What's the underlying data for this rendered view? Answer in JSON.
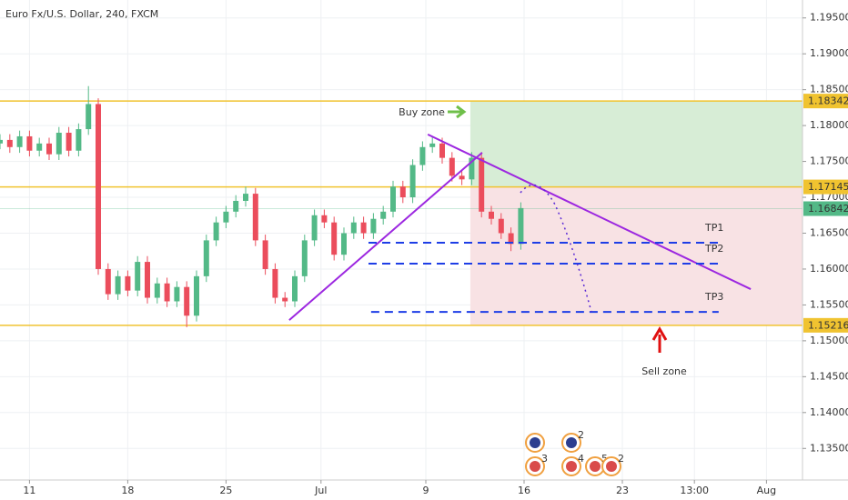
{
  "chart_data": {
    "type": "candlestick",
    "title": "Euro Fx/U.S. Dollar, 240, FXCM",
    "x": [
      0,
      3,
      6,
      9,
      12,
      15,
      18,
      21,
      24,
      27,
      30,
      33,
      36,
      39,
      42,
      45,
      48,
      51,
      54,
      57,
      60,
      63,
      66,
      69,
      72,
      75,
      78,
      81,
      84,
      87,
      90,
      93,
      96,
      99,
      102,
      105,
      108,
      111,
      114,
      117,
      120,
      123,
      126,
      129,
      132,
      135,
      138,
      141,
      144,
      147,
      150,
      153,
      156,
      159
    ],
    "open": [
      1.1775,
      1.178,
      1.177,
      1.1785,
      1.1765,
      1.1775,
      1.176,
      1.179,
      1.1765,
      1.1795,
      1.183,
      1.16,
      1.1565,
      1.159,
      1.157,
      1.161,
      1.156,
      1.158,
      1.1555,
      1.1575,
      1.1535,
      1.159,
      1.164,
      1.1665,
      1.168,
      1.1695,
      1.1705,
      1.164,
      1.16,
      1.156,
      1.1555,
      1.159,
      1.164,
      1.1675,
      1.1665,
      1.162,
      1.165,
      1.1665,
      1.165,
      1.167,
      1.168,
      1.1715,
      1.17,
      1.1745,
      1.177,
      1.1775,
      1.1755,
      1.173,
      1.1725,
      1.1755,
      1.168,
      1.167,
      1.165,
      1.1635
    ],
    "high": [
      1.1788,
      1.1788,
      1.1793,
      1.1793,
      1.1783,
      1.1783,
      1.1798,
      1.1798,
      1.1803,
      1.1855,
      1.1838,
      1.1608,
      1.1598,
      1.1598,
      1.1618,
      1.1618,
      1.1588,
      1.1588,
      1.1583,
      1.1583,
      1.1598,
      1.1648,
      1.1673,
      1.1688,
      1.1703,
      1.1715,
      1.1713,
      1.1648,
      1.1608,
      1.1568,
      1.1598,
      1.1648,
      1.1683,
      1.1683,
      1.1673,
      1.1658,
      1.1673,
      1.1673,
      1.1678,
      1.1688,
      1.1723,
      1.1723,
      1.1753,
      1.1778,
      1.1785,
      1.1783,
      1.1763,
      1.1738,
      1.1763,
      1.1763,
      1.1688,
      1.1678,
      1.1658,
      1.1693
    ],
    "low": [
      1.1767,
      1.1762,
      1.1762,
      1.1757,
      1.1757,
      1.1752,
      1.1752,
      1.1757,
      1.1757,
      1.1787,
      1.1592,
      1.1557,
      1.1557,
      1.1562,
      1.1562,
      1.1552,
      1.1552,
      1.1547,
      1.1547,
      1.1519,
      1.1527,
      1.1582,
      1.1632,
      1.1657,
      1.1672,
      1.1687,
      1.1632,
      1.1592,
      1.1552,
      1.1547,
      1.1547,
      1.1582,
      1.1632,
      1.1657,
      1.1612,
      1.1612,
      1.1642,
      1.1642,
      1.1642,
      1.1662,
      1.1672,
      1.1692,
      1.1692,
      1.1737,
      1.1762,
      1.1747,
      1.1722,
      1.1717,
      1.1717,
      1.1672,
      1.1662,
      1.1642,
      1.1625,
      1.1627
    ],
    "close": [
      1.178,
      1.177,
      1.1785,
      1.1765,
      1.1775,
      1.176,
      1.179,
      1.1765,
      1.1795,
      1.183,
      1.16,
      1.1565,
      1.159,
      1.157,
      1.161,
      1.156,
      1.158,
      1.1555,
      1.1575,
      1.1535,
      1.159,
      1.164,
      1.1665,
      1.168,
      1.1695,
      1.1705,
      1.164,
      1.16,
      1.156,
      1.1555,
      1.159,
      1.164,
      1.1675,
      1.1665,
      1.162,
      1.165,
      1.1665,
      1.165,
      1.167,
      1.168,
      1.1715,
      1.17,
      1.1745,
      1.177,
      1.1775,
      1.1755,
      1.173,
      1.1725,
      1.1755,
      1.168,
      1.167,
      1.165,
      1.1635,
      1.1685
    ],
    "up_color": "#53b987",
    "down_color": "#eb4d5c",
    "xlim": [
      0,
      245
    ],
    "xticks": [
      {
        "value": 9,
        "label": "11"
      },
      {
        "value": 39,
        "label": "18"
      },
      {
        "value": 69,
        "label": "25"
      },
      {
        "value": 98,
        "label": "Jul"
      },
      {
        "value": 130,
        "label": "9"
      },
      {
        "value": 160,
        "label": "16"
      },
      {
        "value": 190,
        "label": "23"
      },
      {
        "value": 212,
        "label": "13:00"
      },
      {
        "value": 234,
        "label": "Aug"
      }
    ],
    "ylim": [
      1.1306,
      1.1975
    ],
    "yticks": [
      {
        "value": 1.135,
        "label": "1.13500"
      },
      {
        "value": 1.14,
        "label": "1.14000"
      },
      {
        "value": 1.145,
        "label": "1.14500"
      },
      {
        "value": 1.15,
        "label": "1.15000"
      },
      {
        "value": 1.155,
        "label": "1.15500"
      },
      {
        "value": 1.16,
        "label": "1.16000"
      },
      {
        "value": 1.165,
        "label": "1.16500"
      },
      {
        "value": 1.17,
        "label": "1.17000"
      },
      {
        "value": 1.175,
        "label": "1.17500"
      },
      {
        "value": 1.18,
        "label": "1.18000"
      },
      {
        "value": 1.185,
        "label": "1.18500"
      },
      {
        "value": 1.19,
        "label": "1.19000"
      },
      {
        "value": 1.195,
        "label": "1.19500"
      }
    ],
    "grid": true,
    "levels": [
      {
        "value": 1.18342,
        "label": "1.18342",
        "color": "#f0c330"
      },
      {
        "value": 1.17145,
        "label": "1.17145",
        "color": "#f0c330"
      },
      {
        "value": 1.16842,
        "label": "1.16842",
        "color": "#53b987"
      },
      {
        "value": 1.15216,
        "label": "1.15216",
        "color": "#f0c330"
      }
    ],
    "zones": [
      {
        "name": "Buy zone",
        "color": "#d7edd6",
        "x": [
          143.6,
          245
        ],
        "y": [
          1.17145,
          1.18342
        ]
      },
      {
        "name": "Sell zone",
        "color": "#f8e2e4",
        "x": [
          143.6,
          245
        ],
        "y": [
          1.15216,
          1.17145
        ]
      }
    ],
    "trend_lines": [
      {
        "color": "#9c27e0",
        "x": [
          88.3,
          147.2
        ],
        "y": [
          1.15288,
          1.17623
        ]
      },
      {
        "color": "#9c27e0",
        "x": [
          130.6,
          229.2
        ],
        "y": [
          1.17876,
          1.1572
        ]
      }
    ],
    "targets": [
      {
        "name": "TP1",
        "color": "#1e3ee6",
        "x": [
          112.5,
          219.4
        ],
        "y": 1.16367
      },
      {
        "name": "TP2",
        "color": "#1e3ee6",
        "x": [
          112.5,
          219.4
        ],
        "y": 1.16075
      },
      {
        "name": "TP3",
        "color": "#1e3ee6",
        "x": [
          113.3,
          219.4
        ],
        "y": 1.15403
      }
    ],
    "events": [
      3,
      2,
      4,
      5,
      2
    ]
  }
}
